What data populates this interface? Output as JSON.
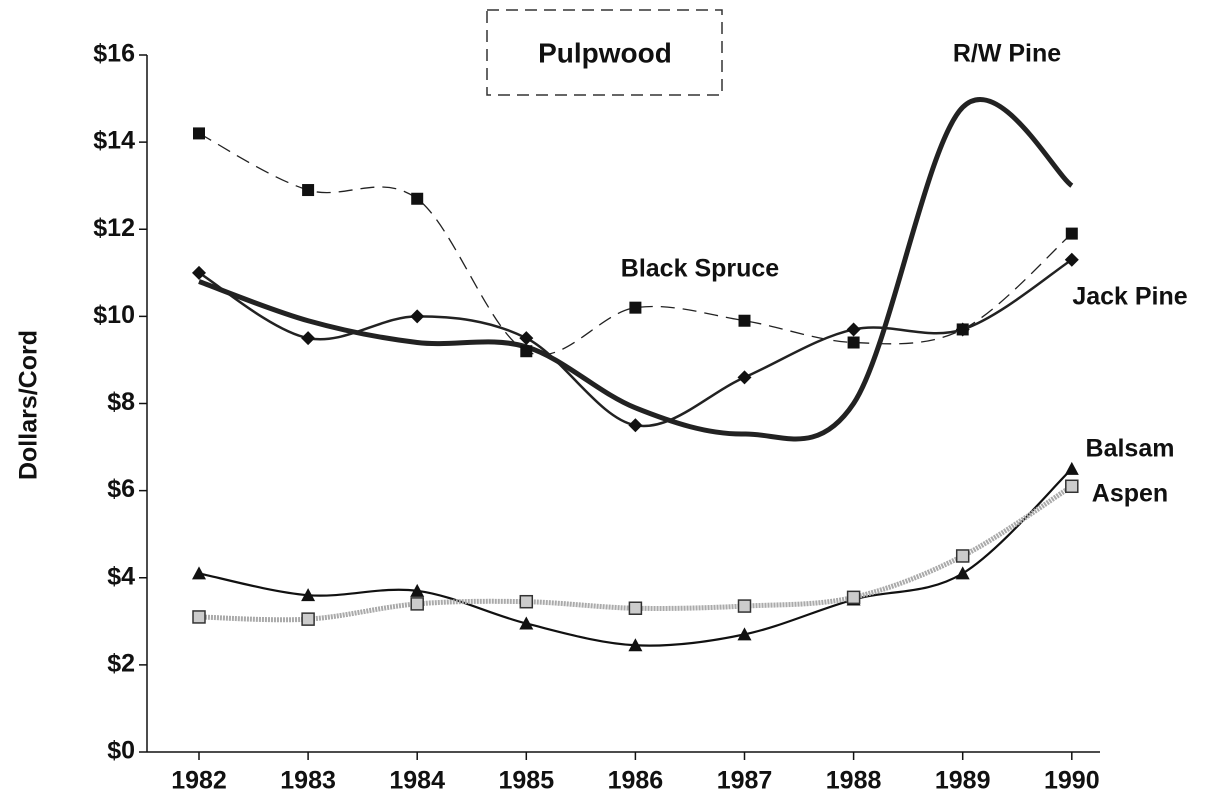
{
  "chart_data": {
    "type": "line",
    "title": "Pulpwood",
    "y_label": "Dollars/Cord",
    "categories": [
      "1982",
      "1983",
      "1984",
      "1985",
      "1986",
      "1987",
      "1988",
      "1989",
      "1990"
    ],
    "ylim": [
      0,
      16
    ],
    "yticks": [
      {
        "value": 0,
        "label": "$0"
      },
      {
        "value": 2,
        "label": "$2"
      },
      {
        "value": 4,
        "label": "$4"
      },
      {
        "value": 6,
        "label": "$6"
      },
      {
        "value": 8,
        "label": "$8"
      },
      {
        "value": 10,
        "label": "$10"
      },
      {
        "value": 12,
        "label": "$12"
      },
      {
        "value": 14,
        "label": "$14"
      },
      {
        "value": 16,
        "label": "$16"
      }
    ],
    "series": [
      {
        "name": "R/W Pine",
        "color": "#222222",
        "values": [
          10.8,
          9.9,
          9.4,
          9.3,
          7.9,
          7.3,
          8.0,
          14.8,
          13.0
        ]
      },
      {
        "name": "Black Spruce",
        "color": "#222222",
        "values": [
          14.2,
          12.9,
          12.7,
          9.2,
          10.2,
          9.9,
          9.4,
          9.7,
          11.9
        ]
      },
      {
        "name": "Jack Pine",
        "color": "#222222",
        "values": [
          11.0,
          9.5,
          10.0,
          9.5,
          7.5,
          8.6,
          9.7,
          9.7,
          11.3
        ]
      },
      {
        "name": "Balsam",
        "color": "#111111",
        "values": [
          4.1,
          3.6,
          3.7,
          2.95,
          2.45,
          2.7,
          3.5,
          4.1,
          6.5
        ]
      },
      {
        "name": "Aspen",
        "color": "#aaaaaa",
        "values": [
          3.1,
          3.05,
          3.4,
          3.45,
          3.3,
          3.35,
          3.55,
          4.5,
          6.1
        ]
      }
    ]
  }
}
